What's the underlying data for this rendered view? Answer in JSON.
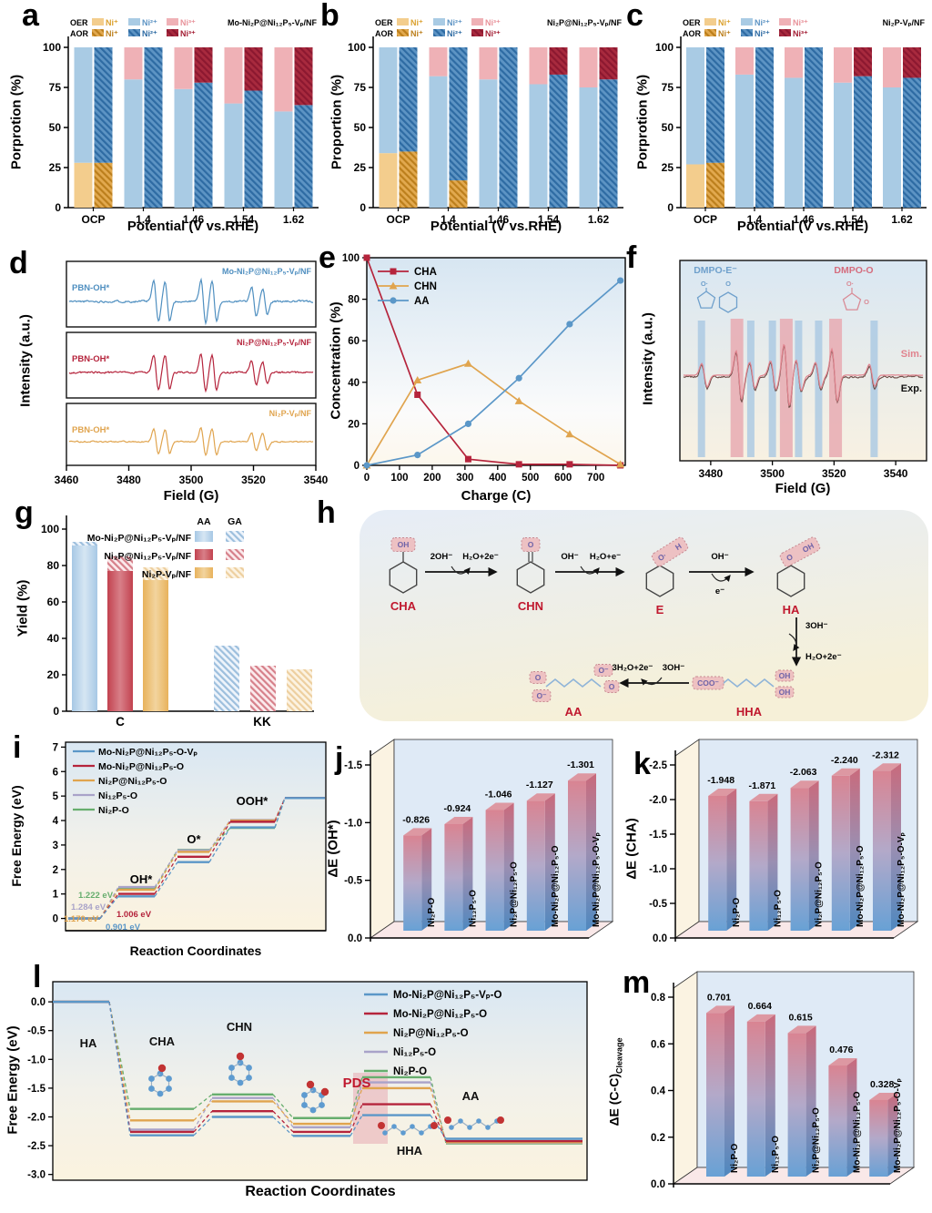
{
  "colors": {
    "ni1_oer": "#f3cd8d",
    "ni2_oer": "#a9cbe4",
    "ni3_oer": "#efb1b6",
    "ni1_aor_bg": "#e2a94f",
    "ni1_aor_line": "#bc7f1c",
    "ni2_aor_bg": "#5d94c4",
    "ni2_aor_line": "#2e6ba3",
    "ni3_aor_bg": "#a82a3e",
    "ni3_aor_line": "#8c1830",
    "legend_row1": [
      "#dba12f",
      "#5d94c4",
      "#e8939b"
    ],
    "legend_row2": [
      "#bc7f1c",
      "#2e6ba3",
      "#a31d33"
    ],
    "bar3d_front_bottom": "#68a1d5",
    "bar3d_front_mid": "#b3a9c9",
    "bar3d_front_top": "#d98492",
    "bar3d_side_bottom": "#4f88bf",
    "bar3d_side_mid": "#9a8fb2",
    "bar3d_side_top": "#c96a7c",
    "bar3d_top_face": "#dd98a2",
    "wall_back": "#dfeaf6",
    "wall_floor": "#f9e8e8",
    "wall_left": "#fbf3e2",
    "scheme_red": "#c0182e",
    "badge_fill": "#eebdbf",
    "badge_stroke": "#c4808a",
    "badge_text": "#6f63a8",
    "exp_color": "#6b4a44",
    "sim_color": "#e0838e",
    "band_blue": "#a9c8e2",
    "band_pink": "#e8aab2",
    "g_hatch": [
      [
        "#eef4fb",
        "#9dbfdd"
      ],
      [
        "#fbeaec",
        "#d6808a"
      ],
      [
        "#fcf3e2",
        "#edcf9f"
      ]
    ],
    "g_light": [
      "#d6e6f3",
      "#d87f88",
      "#f2d49e"
    ]
  },
  "panels": {
    "a": {
      "letter": "a",
      "title": "Mo-Ni₂P@Ni₁₂P₅-Vₚ/NF",
      "ylabel": "Porprotion (%)",
      "xlabel": "Potential (V vs.RHE)",
      "oer_label": "OER",
      "aor_label": "AOR",
      "species": [
        "Ni⁺",
        "Ni²⁺",
        "Ni³⁺"
      ]
    },
    "b": {
      "letter": "b",
      "title": "Ni₂P@Ni₁₂P₅-Vₚ/NF",
      "ylabel": "Proportion (%)",
      "xlabel": "Potential (V vs.RHE)",
      "oer_label": "OER",
      "aor_label": "AOR",
      "species": [
        "Ni⁺",
        "Ni²⁺",
        "Ni³⁺"
      ]
    },
    "c": {
      "letter": "c",
      "title": "Ni₂P-Vₚ/NF",
      "ylabel": "Porprotion (%)",
      "xlabel": "Potential (V vs.RHE)",
      "oer_label": "OER",
      "aor_label": "AOR",
      "species": [
        "Ni⁺",
        "Ni²⁺",
        "Ni³⁺"
      ]
    },
    "d": {
      "letter": "d",
      "ylabel": "Intensity (a.u.)",
      "xlabel": "Field (G)"
    },
    "e": {
      "letter": "e",
      "ylabel": "Concentration (%)",
      "xlabel": "Charge (C)"
    },
    "f": {
      "letter": "f",
      "ylabel": "Intensity (a.u.)",
      "xlabel": "Field (G)",
      "adduct_blue": "DMPO-E⁻",
      "adduct_pink": "DMPO-O",
      "sim_label": "Sim.",
      "exp_label": "Exp."
    },
    "g": {
      "letter": "g",
      "ylabel": "Yield (%)",
      "legend_col1": "AA",
      "legend_col2": "GA"
    },
    "h": {
      "letter": "h",
      "species": {
        "cha": "CHA",
        "chn": "CHN",
        "e": "E",
        "ha": "HA",
        "aa": "AA",
        "hha": "HHA"
      },
      "arrows": {
        "a1a": "2OH⁻",
        "a1b": "H₂O+2e⁻",
        "a2a": "OH⁻",
        "a2b": "H₂O+e⁻",
        "a3a": "OH⁻",
        "a3b": "e⁻",
        "d1": "3OH⁻",
        "d2": "H₂O+2e⁻",
        "a5a": "3H₂O+2e⁻",
        "a5b": "3OH⁻"
      },
      "groups": {
        "cha": "OH",
        "chn": "O",
        "e1": "O·",
        "e2": "H",
        "ha1": "O",
        "ha2": "OH",
        "hha1": "COO⁻",
        "hha2": "OH",
        "hha3": "OH",
        "aa1": "O",
        "aa2": "O⁻",
        "aa3": "O⁻",
        "aa4": "O"
      }
    },
    "i": {
      "letter": "i",
      "ylabel": "Free Energy (eV)",
      "xlabel": "Reaction Coordinates"
    },
    "j": {
      "letter": "j",
      "ylabel": "ΔE (OH*)"
    },
    "k": {
      "letter": "k",
      "ylabel": "ΔE (CHA)"
    },
    "l": {
      "letter": "l",
      "ylabel": "Free Energy (eV)",
      "xlabel": "Reaction Coordinates"
    },
    "m": {
      "letter": "m",
      "ylabel_main": "ΔE (C-C)",
      "ylabel_sub": "Cleavage"
    }
  },
  "chart_data": [
    {
      "panel": "a",
      "type": "stacked-bar",
      "categories": [
        "OCP",
        "1.4",
        "1.46",
        "1.54",
        "1.62"
      ],
      "yticks": [
        0,
        25,
        50,
        75,
        100
      ],
      "ylim": [
        0,
        100
      ],
      "series_names": [
        "Ni⁺",
        "Ni²⁺",
        "Ni³⁺"
      ],
      "oer": [
        [
          28,
          72,
          0
        ],
        [
          0,
          80,
          20
        ],
        [
          0,
          74,
          26
        ],
        [
          0,
          65,
          35
        ],
        [
          0,
          60,
          40
        ]
      ],
      "aor": [
        [
          28,
          72,
          0
        ],
        [
          0,
          100,
          0
        ],
        [
          0,
          78,
          22
        ],
        [
          0,
          73,
          27
        ],
        [
          0,
          64,
          36
        ]
      ]
    },
    {
      "panel": "b",
      "type": "stacked-bar",
      "categories": [
        "OCP",
        "1.4",
        "1.46",
        "1.54",
        "1.62"
      ],
      "yticks": [
        0,
        25,
        50,
        75,
        100
      ],
      "ylim": [
        0,
        100
      ],
      "series_names": [
        "Ni⁺",
        "Ni²⁺",
        "Ni³⁺"
      ],
      "oer": [
        [
          34,
          66,
          0
        ],
        [
          0,
          82,
          18
        ],
        [
          0,
          80,
          20
        ],
        [
          0,
          77,
          23
        ],
        [
          0,
          75,
          25
        ]
      ],
      "aor": [
        [
          35,
          65,
          0
        ],
        [
          17,
          83,
          0
        ],
        [
          0,
          100,
          0
        ],
        [
          0,
          83,
          17
        ],
        [
          0,
          80,
          20
        ]
      ]
    },
    {
      "panel": "c",
      "type": "stacked-bar",
      "categories": [
        "OCP",
        "1.4",
        "1.46",
        "1.54",
        "1.62"
      ],
      "yticks": [
        0,
        25,
        50,
        75,
        100
      ],
      "ylim": [
        0,
        100
      ],
      "series_names": [
        "Ni⁺",
        "Ni²⁺",
        "Ni³⁺"
      ],
      "oer": [
        [
          27,
          73,
          0
        ],
        [
          0,
          83,
          17
        ],
        [
          0,
          81,
          19
        ],
        [
          0,
          78,
          22
        ],
        [
          0,
          75,
          25
        ]
      ],
      "aor": [
        [
          28,
          72,
          0
        ],
        [
          0,
          100,
          0
        ],
        [
          0,
          100,
          0
        ],
        [
          0,
          82,
          18
        ],
        [
          0,
          81,
          19
        ]
      ]
    },
    {
      "panel": "d",
      "type": "epr",
      "xlim": [
        3460,
        3540
      ],
      "xticks": [
        3460,
        3480,
        3500,
        3520,
        3540
      ],
      "peak_fields": [
        3488.5,
        3492.2,
        3504,
        3507.6,
        3520.6,
        3524.2
      ],
      "peak_amps": [
        1,
        0.95,
        1.05,
        1,
        0.7,
        0.62
      ],
      "traces": [
        {
          "sample": "Mo-Ni₂P@Ni₁₂P₅-Vₚ/NF",
          "adduct": "PBN-OH*",
          "color": "#4f8fc0",
          "amp": 1.0
        },
        {
          "sample": "Ni₂P@Ni₁₂P₅-Vₚ/NF",
          "adduct": "PBN-OH*",
          "color": "#b5243c",
          "amp": 0.85
        },
        {
          "sample": "Ni₂P-Vₚ/NF",
          "adduct": "PBN-OH*",
          "color": "#e0a44e",
          "amp": 0.62
        }
      ]
    },
    {
      "panel": "e",
      "type": "line",
      "x": [
        0,
        155,
        310,
        465,
        620,
        775
      ],
      "series": [
        {
          "name": "CHA",
          "color": "#b5243c",
          "marker": "square",
          "values": [
            100,
            34,
            3,
            0.5,
            0.5,
            0
          ]
        },
        {
          "name": "CHN",
          "color": "#e0a44e",
          "marker": "triangle",
          "values": [
            0,
            41,
            49,
            31,
            15,
            0.5
          ]
        },
        {
          "name": "AA",
          "color": "#5b97c8",
          "marker": "circle",
          "values": [
            0,
            5,
            20,
            42,
            68,
            89
          ]
        }
      ],
      "xticks": [
        0,
        100,
        200,
        300,
        400,
        500,
        600,
        700
      ],
      "yticks": [
        0,
        20,
        40,
        60,
        80,
        100
      ],
      "xlim": [
        0,
        790
      ],
      "ylim": [
        0,
        100
      ]
    },
    {
      "panel": "f",
      "type": "epr-bands",
      "xlim": [
        3470,
        3550
      ],
      "xticks": [
        3480,
        3500,
        3520,
        3540
      ],
      "blue_bands": [
        3477,
        3493,
        3500,
        3508.5,
        3515,
        3533
      ],
      "pink_bands": [
        3488.5,
        3504.5,
        3520.5
      ],
      "peak_fields": [
        3477,
        3488.5,
        3493,
        3500,
        3504.5,
        3508.5,
        3515,
        3520.5,
        3533
      ],
      "peak_amps": [
        0.45,
        0.95,
        0.5,
        0.55,
        1.2,
        0.6,
        0.5,
        1.0,
        0.42
      ]
    },
    {
      "panel": "g",
      "type": "bar",
      "categories": [
        "C",
        "KK"
      ],
      "yticks": [
        0,
        20,
        40,
        60,
        80,
        100
      ],
      "ylim": [
        0,
        100
      ],
      "series": [
        {
          "name": "Mo-Ni₂P@Ni₁₂P₅-Vₚ/NF",
          "color": "#a7c8e5",
          "c_solid": 91,
          "c_total": 93,
          "kk": 36
        },
        {
          "name": "Ni₂P@Ni₁₂P₅-Vₚ/NF",
          "color": "#c2424f",
          "c_solid": 77,
          "c_total": 85,
          "kk": 25
        },
        {
          "name": "Ni₂P-Vₚ/NF",
          "color": "#e8b25c",
          "c_solid": 72,
          "c_total": 79,
          "kk": 23
        }
      ]
    },
    {
      "panel": "i",
      "type": "step-line",
      "ylim": [
        -0.5,
        7.2
      ],
      "yticks": [
        0,
        1,
        2,
        3,
        4,
        5,
        6,
        7
      ],
      "ytick_labels": [
        "0",
        "1",
        "2",
        "3",
        "4",
        "5",
        "6",
        "7"
      ],
      "stage_x": [
        [
          75,
          110
        ],
        [
          130,
          170
        ],
        [
          195,
          230
        ],
        [
          253,
          302
        ],
        [
          313,
          357
        ]
      ],
      "step_labels": [
        {
          "text": "OH*",
          "x": 155,
          "y": 170
        },
        {
          "text": "O*",
          "x": 213,
          "y": 126
        },
        {
          "text": "OOH*",
          "x": 277,
          "y": 84
        }
      ],
      "series": [
        {
          "name": "Mo-Ni₂P@Ni₁₂P₅-O-Vₚ",
          "color": "#5b97c8",
          "levels": [
            0,
            0.901,
            2.3,
            3.72,
            4.92
          ]
        },
        {
          "name": "Mo-Ni₂P@Ni₁₂P₅-O",
          "color": "#b5243c",
          "levels": [
            0,
            1.006,
            2.52,
            3.95,
            4.92
          ]
        },
        {
          "name": "Ni₂P@Ni₁₂P₅-O",
          "color": "#e0a44e",
          "levels": [
            0,
            1.17,
            2.72,
            4.0,
            4.92
          ]
        },
        {
          "name": "Ni₁₂P₅-O",
          "color": "#a9a3c9",
          "levels": [
            0,
            1.284,
            2.78,
            4.02,
            4.92
          ]
        },
        {
          "name": "Ni₂P-O",
          "color": "#67ae6e",
          "levels": [
            0,
            1.222,
            2.8,
            3.7,
            4.92
          ]
        }
      ],
      "annotations": [
        {
          "text": "1.222 eV",
          "color": "#67ae6e",
          "x": 86,
          "y": 186
        },
        {
          "text": "1.284 eV",
          "color": "#a9a3c9",
          "x": 78,
          "y": 199
        },
        {
          "text": "1.170 eV",
          "color": "#e0a44e",
          "x": 70,
          "y": 212
        },
        {
          "text": "1.006 eV",
          "color": "#b5243c",
          "x": 128,
          "y": 207
        },
        {
          "text": "0.901 eV",
          "color": "#5b97c8",
          "x": 116,
          "y": 221
        }
      ]
    },
    {
      "panel": "j",
      "type": "bar3d",
      "ymax": 1.5,
      "tick_labels": [
        "0.0",
        "-0.5",
        "-1.0",
        "-1.5"
      ],
      "categories": [
        "Ni₂P-O",
        "Ni₁₂P₅-O",
        "Ni₂P@Ni₁₂P₅-O",
        "Mo-Ni₂P@Ni₁₂P₅-O",
        "Mo-Ni₂P@Ni₁₂P₅-O-Vₚ"
      ],
      "values": [
        -0.826,
        -0.924,
        -1.046,
        -1.127,
        -1.301
      ],
      "value_labels": [
        "-0.826",
        "-0.924",
        "-1.046",
        "-1.127",
        "-1.301"
      ]
    },
    {
      "panel": "k",
      "type": "bar3d",
      "ymax": 2.5,
      "tick_labels": [
        "0.0",
        "-0.5",
        "-1.0",
        "-1.5",
        "-2.0",
        "-2.5"
      ],
      "categories": [
        "Ni₂P-O",
        "Ni₁₂P₅-O",
        "Ni₂P@Ni₁₂P₅-O",
        "Mo-Ni₂P@Ni₁₂P₅-O",
        "Mo-Ni₂P@Ni₁₂P₅-O-Vₚ"
      ],
      "values": [
        -1.948,
        -1.871,
        -2.063,
        -2.24,
        -2.312
      ],
      "value_labels": [
        "-1.948",
        "-1.871",
        "-2.063",
        "-2.240",
        "-2.312"
      ]
    },
    {
      "panel": "l",
      "type": "step-line",
      "ylim": [
        -3.1,
        0.35
      ],
      "yticks": [
        0,
        -0.5,
        -1,
        -1.5,
        -2,
        -2.5,
        -3
      ],
      "ytick_labels": [
        "0.0",
        "-0.5",
        "-1.0",
        "-1.5",
        "-2.0",
        "-2.5",
        "-3.0"
      ],
      "stage_x": [
        [
          58,
          120
        ],
        [
          143,
          213
        ],
        [
          233,
          300
        ],
        [
          322,
          385
        ],
        [
          398,
          473
        ],
        [
          490,
          640
        ]
      ],
      "labels": [
        {
          "text": "HA",
          "x": 97,
          "y": 100,
          "color": "#111",
          "size": 13
        },
        {
          "text": "CHA",
          "x": 178,
          "y": 98,
          "color": "#111",
          "size": 13
        },
        {
          "text": "CHN",
          "x": 263,
          "y": 82,
          "color": "#111",
          "size": 13
        },
        {
          "text": "PDS",
          "x": 392,
          "y": 144,
          "color": "#c0182e",
          "size": 15
        },
        {
          "text": "HHA",
          "x": 450,
          "y": 218,
          "color": "#111",
          "size": 13
        },
        {
          "text": "AA",
          "x": 517,
          "y": 158,
          "color": "#111",
          "size": 13
        }
      ],
      "pds_rect": {
        "x": 388,
        "y": 128,
        "w": 38,
        "h": 78
      },
      "series": [
        {
          "name": "Mo-Ni₂P@Ni₁₂P₅-Vₚ-O",
          "color": "#5b97c8",
          "levels": [
            0,
            -2.32,
            -2.0,
            -2.33,
            -1.97,
            -2.38
          ]
        },
        {
          "name": "Mo-Ni₂P@Ni₁₂P₅-O",
          "color": "#b5243c",
          "levels": [
            0,
            -2.26,
            -1.9,
            -2.26,
            -1.78,
            -2.42
          ]
        },
        {
          "name": "Ni₂P@Ni₁₂P₅-O",
          "color": "#e0a44e",
          "levels": [
            0,
            -2.06,
            -1.73,
            -2.12,
            -1.5,
            -2.44
          ]
        },
        {
          "name": "Ni₁₂P₅-O",
          "color": "#a9a3c9",
          "levels": [
            0,
            -2.22,
            -1.67,
            -2.18,
            -1.4,
            -2.45
          ]
        },
        {
          "name": "Ni₂P-O",
          "color": "#67ae6e",
          "levels": [
            0,
            -1.86,
            -1.61,
            -2.02,
            -1.31,
            -2.46
          ]
        }
      ]
    },
    {
      "panel": "m",
      "type": "bar3d",
      "ymax": 0.8,
      "tick_labels": [
        "0.0",
        "0.2",
        "0.4",
        "0.6",
        "0.8"
      ],
      "categories": [
        "Ni₂P-O",
        "Ni₁₂P₅-O",
        "Ni₂P@Ni₁₂P₅-O",
        "Mo-Ni₂P@Ni₁₂P₅-O",
        "Mo-Ni₂P@Ni₁₂P₅-O-Vₚ"
      ],
      "values": [
        0.701,
        0.664,
        0.615,
        0.476,
        0.328
      ],
      "value_labels": [
        "0.701",
        "0.664",
        "0.615",
        "0.476",
        "0.328"
      ]
    }
  ]
}
